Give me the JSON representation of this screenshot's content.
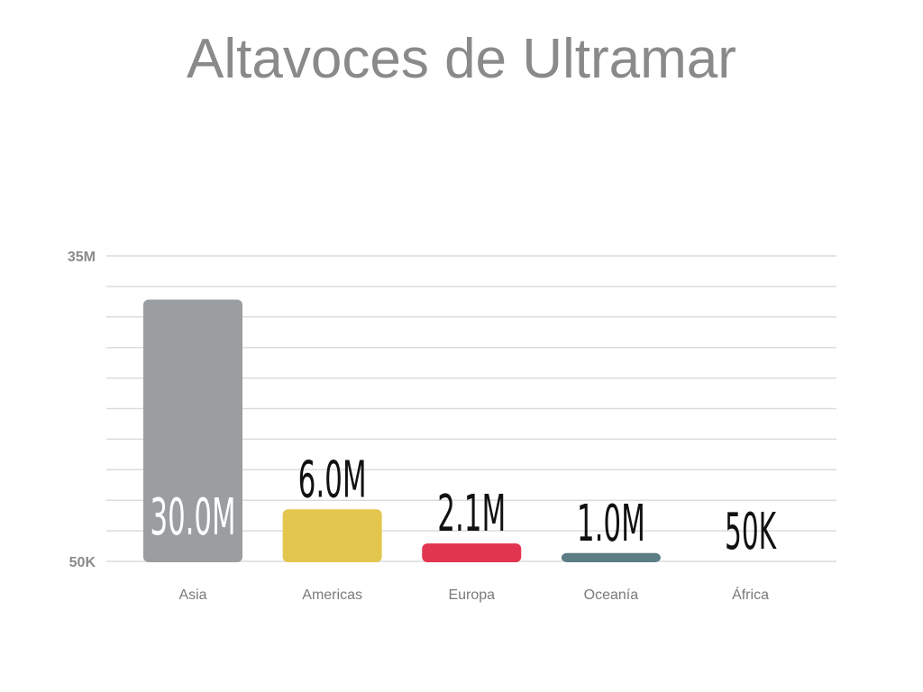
{
  "chart_data": {
    "type": "bar",
    "title": "Altavoces de Ultramar",
    "categories": [
      "Asia",
      "Americas",
      "Europa",
      "Oceanía",
      "África"
    ],
    "values": [
      30000000,
      6000000,
      2100000,
      1000000,
      50000
    ],
    "data_labels": [
      "30.0M",
      "6.0M",
      "2.1M",
      "1.0M",
      "50K"
    ],
    "colors": [
      "#9a9ea1",
      "#e3c64e",
      "#e2354f",
      "#5b7d84",
      "#9a9ea1"
    ],
    "y_tick_labels": [
      "50K",
      "35M"
    ],
    "ylim": [
      50000,
      35000000
    ],
    "grid": true,
    "legend": "none"
  }
}
